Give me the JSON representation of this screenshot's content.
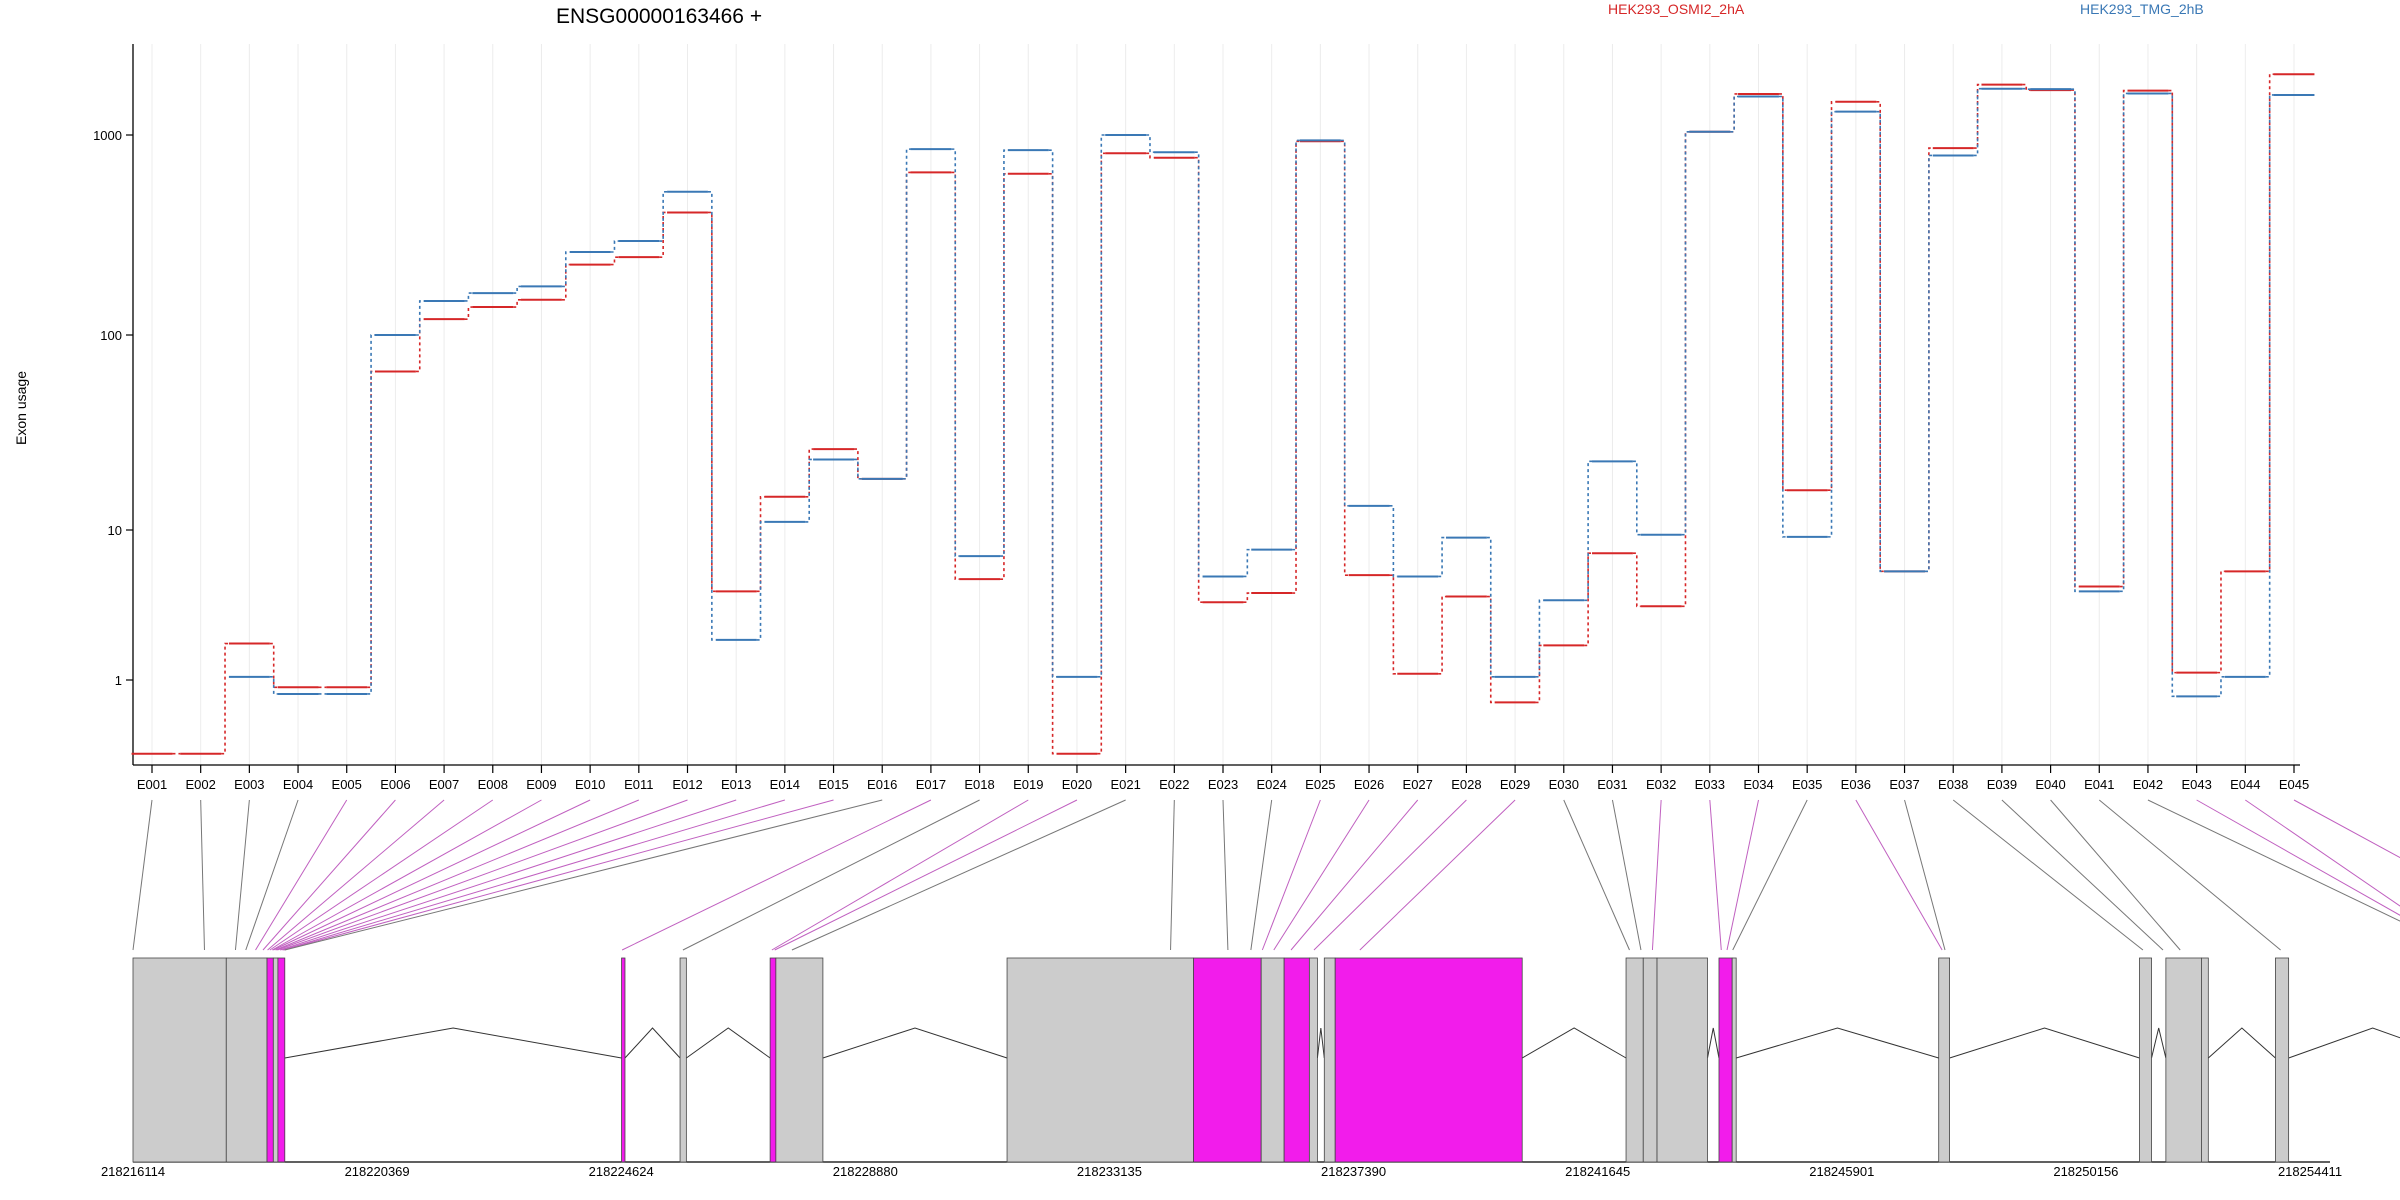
{
  "chart_data": {
    "type": "line",
    "title": "ENSG00000163466 +",
    "ylabel": "Exon usage",
    "yscale": "log",
    "ylim": [
      0.4,
      3000
    ],
    "yticks": [
      1,
      10,
      100,
      1000
    ],
    "ytick_labels": [
      "1",
      "10",
      "100",
      "1000"
    ],
    "grid": "vertical",
    "legend_placement": "top",
    "categories": [
      "E001",
      "E002",
      "E003",
      "E004",
      "E005",
      "E006",
      "E007",
      "E008",
      "E009",
      "E010",
      "E011",
      "E012",
      "E013",
      "E014",
      "E015",
      "E016",
      "E017",
      "E018",
      "E019",
      "E020",
      "E021",
      "E022",
      "E023",
      "E024",
      "E025",
      "E026",
      "E027",
      "E028",
      "E029",
      "E030",
      "E031",
      "E032",
      "E033",
      "E034",
      "E035",
      "E036",
      "E037",
      "E038",
      "E039",
      "E040",
      "E041",
      "E042",
      "E043",
      "E044",
      "E045"
    ],
    "series": [
      {
        "name": "HEK293_OSMI2_2hA",
        "color": "#d62728",
        "values": [
          0.48,
          0.48,
          1.75,
          0.93,
          0.93,
          65,
          120,
          138,
          150,
          225,
          245,
          410,
          3.9,
          14.8,
          26,
          18.3,
          650,
          4.7,
          640,
          0.48,
          810,
          770,
          3.3,
          3.8,
          930,
          5,
          1.1,
          3.6,
          0.8,
          1.7,
          7,
          3.1,
          1040,
          1650,
          16,
          1500,
          5.3,
          860,
          1850,
          1730,
          4.2,
          1720,
          1.12,
          5.3,
          2100
        ]
      },
      {
        "name": "HEK293_TMG_2hB",
        "color": "#3a78b5",
        "values": [
          null,
          null,
          1.05,
          0.87,
          0.87,
          100,
          148,
          162,
          175,
          260,
          295,
          520,
          1.85,
          11,
          23,
          18.3,
          850,
          6.7,
          840,
          1.05,
          1000,
          820,
          4.9,
          7.4,
          940,
          13.3,
          4.9,
          8.9,
          1.05,
          3.4,
          22.5,
          9.3,
          1040,
          1600,
          9,
          1330,
          5.3,
          790,
          1760,
          1750,
          3.9,
          1660,
          0.85,
          1.05,
          1630
        ]
      }
    ],
    "gene_model": {
      "coordinate_labels": [
        "218216114",
        "218220369",
        "218224624",
        "218228880",
        "218233135",
        "218237390",
        "218241645",
        "218245901",
        "218250156",
        "218254411"
      ]
    }
  },
  "colors": {
    "exon_normal": "#cccccc",
    "exon_highlight": "#f21ceb",
    "connector_highlight": "#c060c0",
    "connector_normal": "#777777"
  }
}
